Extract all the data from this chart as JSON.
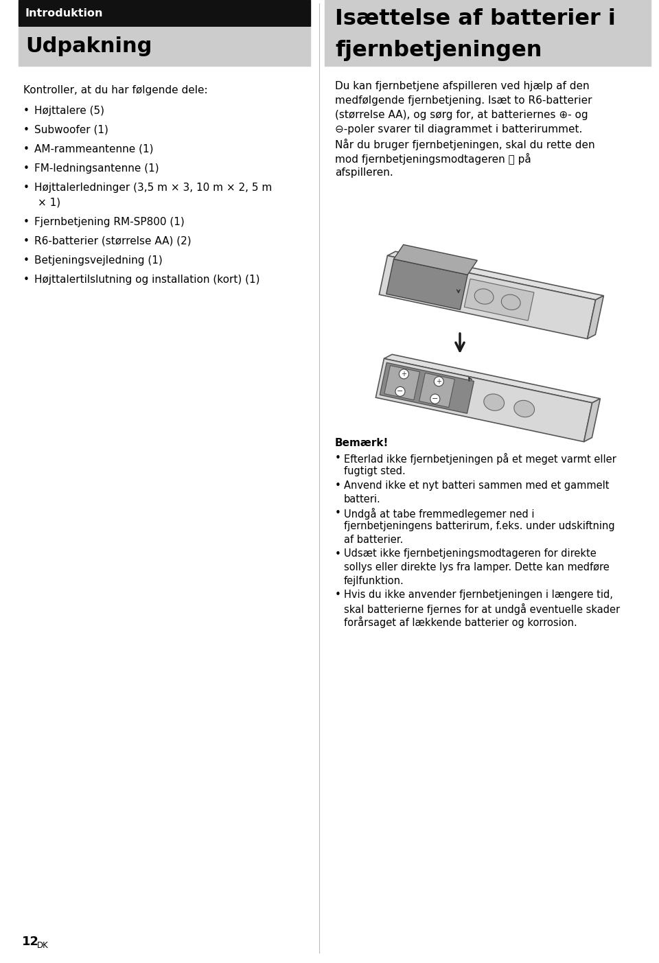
{
  "bg_color": "#ffffff",
  "header_bar_color": "#111111",
  "header_text_color": "#ffffff",
  "section_bg_color": "#cccccc",
  "left_header_text": "Introduktion",
  "left_section_title": "Udpakning",
  "right_title_line1": "Isættelse af batterier i",
  "right_title_line2": "fjernbetjeningen",
  "left_intro": "Kontroller, at du har følgende dele:",
  "left_bullets": [
    [
      "Højttalere (5)"
    ],
    [
      "Subwoofer (1)"
    ],
    [
      "AM-rammeantenne (1)"
    ],
    [
      "FM-ledningsantenne (1)"
    ],
    [
      "Højttalerledninger (3,5 m × 3, 10 m × 2, 5 m",
      "× 1)"
    ],
    [
      "Fjernbetjening RM-SP800 (1)"
    ],
    [
      "R6-batterier (størrelse AA) (2)"
    ],
    [
      "Betjeningsvejledning (1)"
    ],
    [
      "Højttalertilslutning og installation (kort) (1)"
    ]
  ],
  "right_body_lines": [
    "Du kan fjernbetjene afspilleren ved hjælp af den",
    "medfølgende fjernbetjening. Isæt to R6-batterier",
    "(størrelse AA), og sørg for, at batteriernes ⊕- og",
    "⊖-poler svarer til diagrammet i batterirummet.",
    "Når du bruger fjernbetjeningen, skal du rette den",
    "mod fjernbetjeningsmodtageren Ⓡ på",
    "afspilleren."
  ],
  "note_title": "Bemærk!",
  "note_bullets": [
    [
      "Efterlad ikke fjernbetjeningen på et meget varmt eller",
      "fugtigt sted."
    ],
    [
      "Anvend ikke et nyt batteri sammen med et gammelt",
      "batteri."
    ],
    [
      "Undgå at tabe fremmedlegemer ned i",
      "fjernbetjeningens batterirum, f.eks. under udskiftning",
      "af batterier."
    ],
    [
      "Udsæt ikke fjernbetjeningsmodtageren for direkte",
      "sollys eller direkte lys fra lamper. Dette kan medføre",
      "fejlfunktion."
    ],
    [
      "Hvis du ikke anvender fjernbetjeningen i længere tid,",
      "skal batterierne fjernes for at undgå eventuelle skader",
      "forårsaget af lækkende batterier og korrosion."
    ]
  ],
  "page_number": "12",
  "page_suffix": "DK"
}
